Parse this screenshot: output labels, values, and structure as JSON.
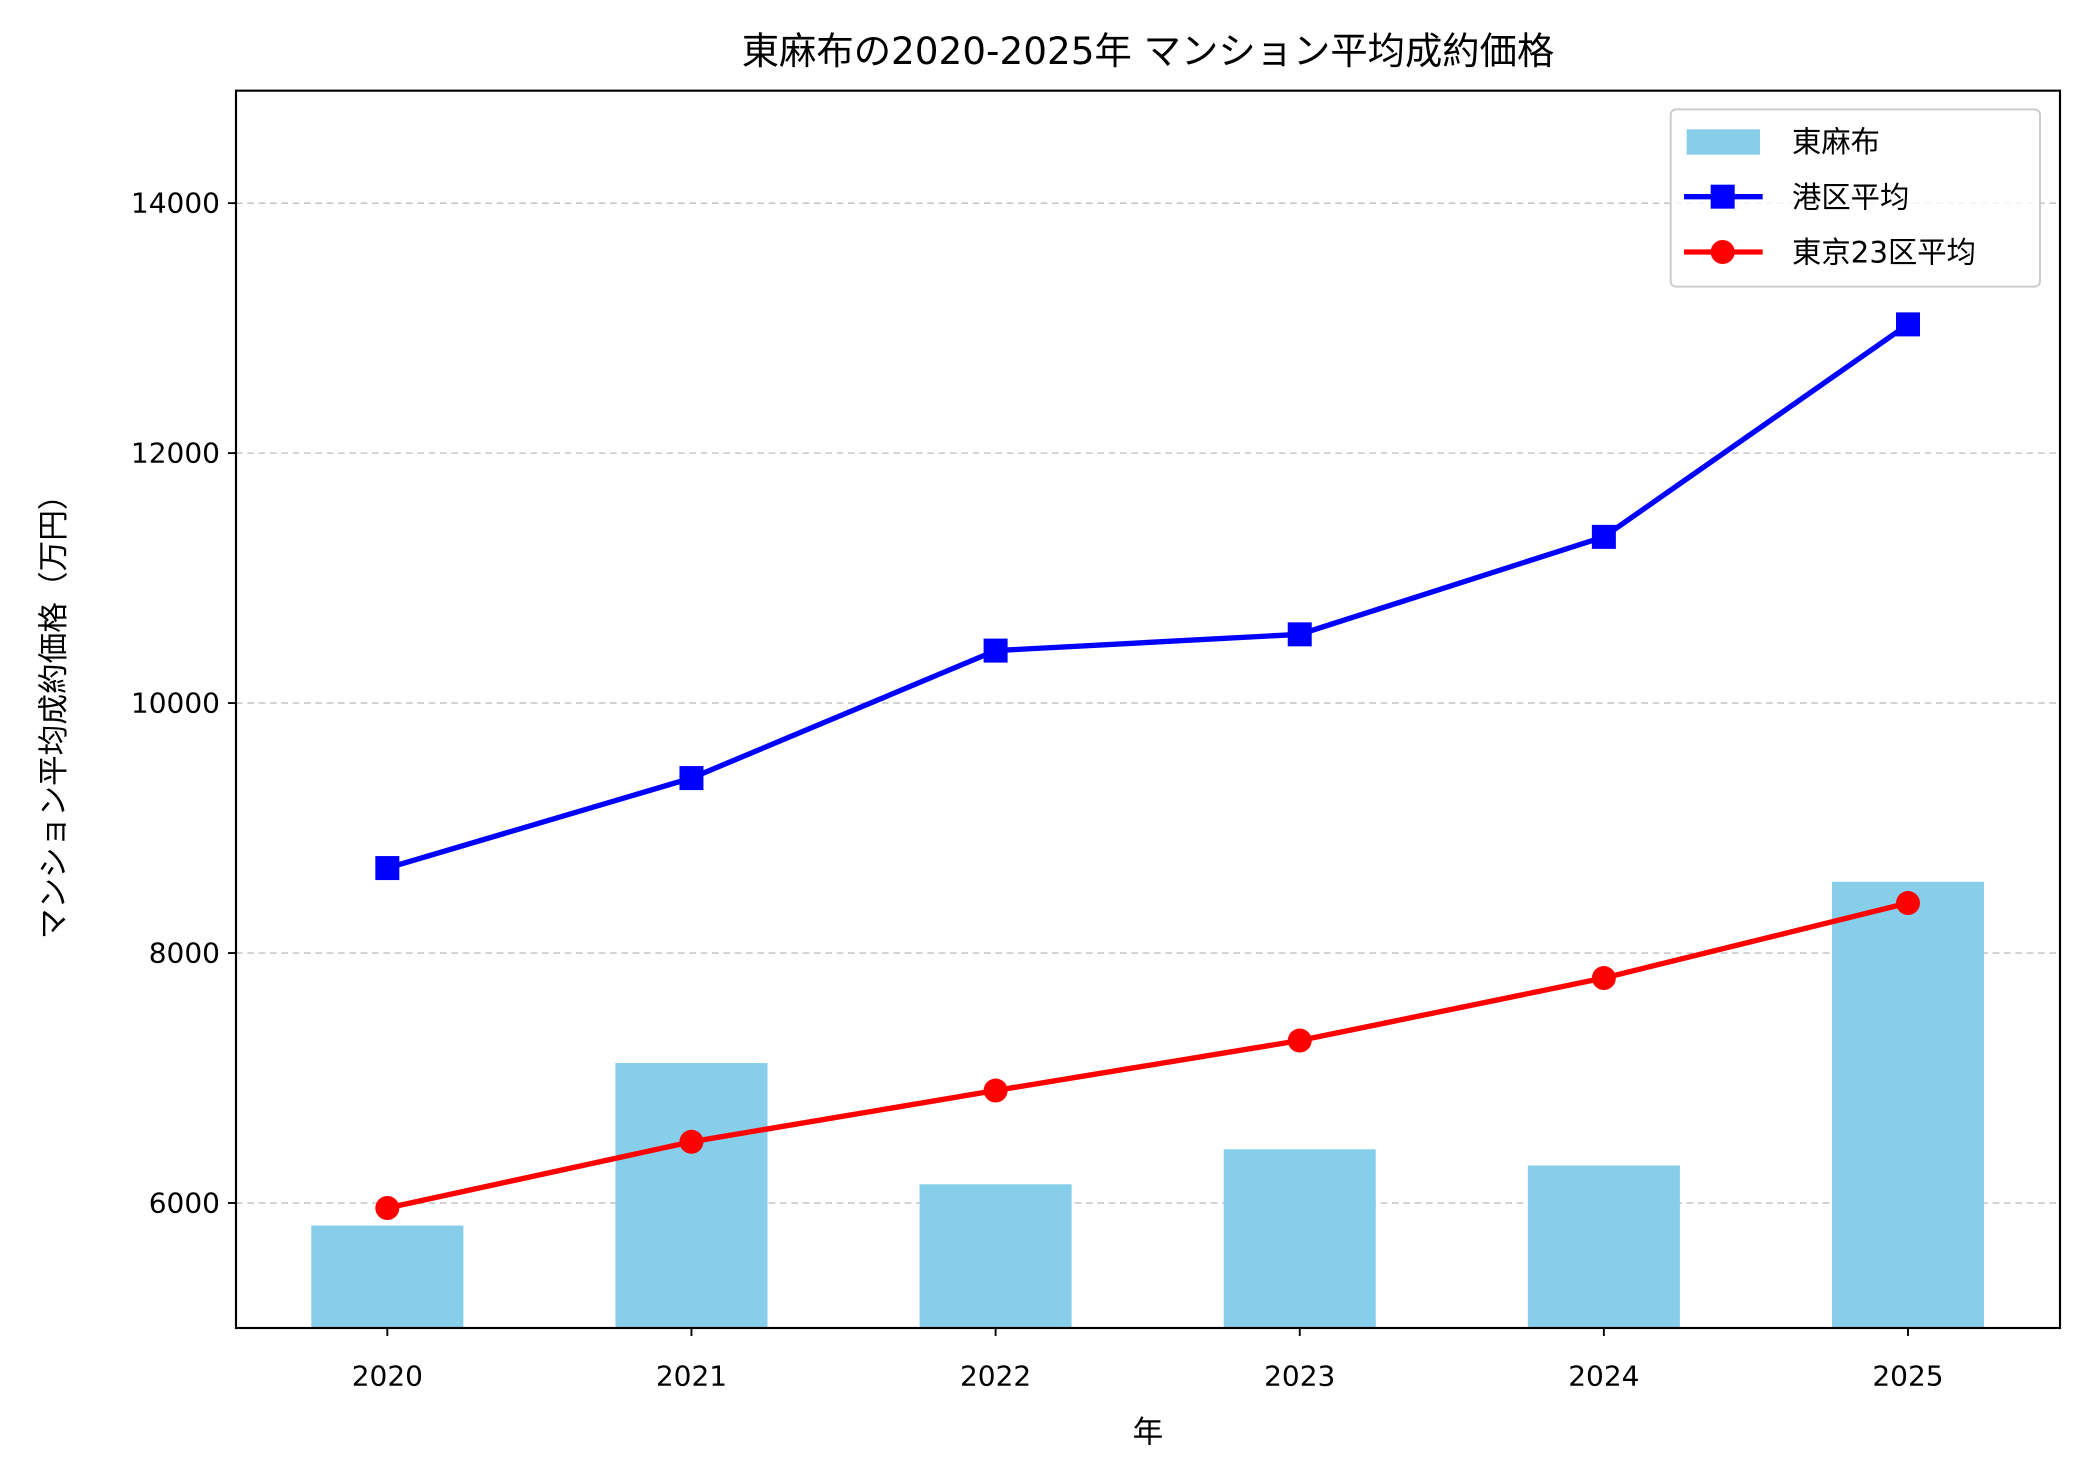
{
  "chart_data": {
    "type": "bar+line",
    "title": "東麻布の2020-2025年 マンション平均成約価格",
    "xlabel": "年",
    "ylabel": "マンション平均成約価格（万円）",
    "categories": [
      "2020",
      "2021",
      "2022",
      "2023",
      "2024",
      "2025"
    ],
    "ylim": [
      5000,
      14900
    ],
    "yticks": [
      6000,
      8000,
      10000,
      12000,
      14000
    ],
    "grid": "y-dashed",
    "legend_position": "top-right",
    "series": [
      {
        "name": "東麻布",
        "kind": "bar",
        "color": "#87ceeb",
        "values": [
          5820,
          7120,
          6150,
          6430,
          6300,
          8570
        ]
      },
      {
        "name": "港区平均",
        "kind": "line",
        "marker": "square",
        "color": "#0000ff",
        "values": [
          8680,
          9400,
          10420,
          10550,
          11330,
          13030
        ]
      },
      {
        "name": "東京23区平均",
        "kind": "line",
        "marker": "circle",
        "color": "#ff0000",
        "values": [
          5960,
          6490,
          6900,
          7300,
          7800,
          8400
        ]
      }
    ]
  }
}
